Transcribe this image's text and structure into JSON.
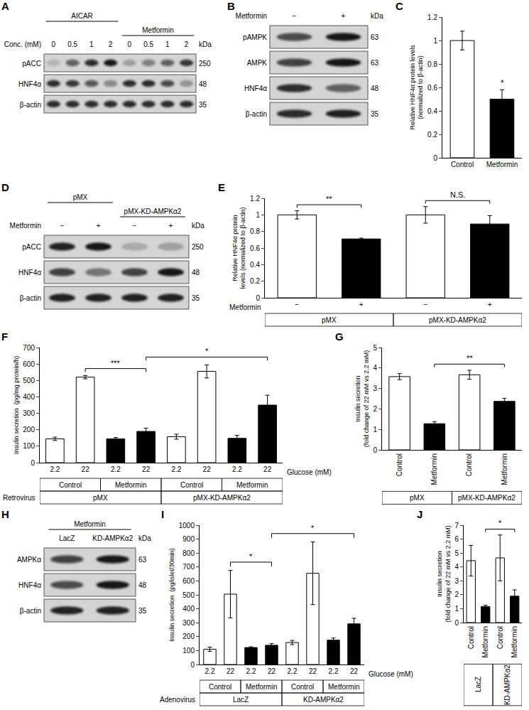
{
  "chart_data": [
    {
      "panel": "A",
      "type": "blot",
      "unit": "kDa",
      "headers": [
        {
          "label": "AICAR",
          "from": 0,
          "to": 3
        },
        {
          "label": "Metformin",
          "from": 4,
          "to": 7
        }
      ],
      "lane_rows": [
        {
          "title": "Conc. (mM)",
          "labels": [
            "0",
            "0.5",
            "1",
            "2",
            "0",
            "0.5",
            "1",
            "2"
          ]
        }
      ],
      "rows": [
        {
          "name": "pACC",
          "mw": "250",
          "intensity": [
            0.15,
            0.6,
            0.85,
            0.95,
            0.25,
            0.45,
            0.6,
            0.8
          ]
        },
        {
          "name": "HNF4α",
          "mw": "48",
          "intensity": [
            0.85,
            0.8,
            0.65,
            0.4,
            0.85,
            0.85,
            0.7,
            0.3
          ]
        },
        {
          "name": "β-actin",
          "mw": "35",
          "intensity": [
            0.85,
            0.85,
            0.85,
            0.85,
            0.85,
            0.85,
            0.85,
            0.85
          ]
        }
      ]
    },
    {
      "panel": "B",
      "type": "blot",
      "unit": "kDa",
      "lane_rows": [
        {
          "title": "Metformin",
          "labels": [
            "−",
            "+"
          ]
        }
      ],
      "rows": [
        {
          "name": "pAMPK",
          "mw": "63",
          "intensity": [
            0.7,
            0.95
          ]
        },
        {
          "name": "AMPK",
          "mw": "63",
          "intensity": [
            0.75,
            0.95
          ]
        },
        {
          "name": "HNF4α",
          "mw": "48",
          "intensity": [
            0.85,
            0.6
          ]
        },
        {
          "name": "β-actin",
          "mw": "35",
          "intensity": [
            0.85,
            0.9
          ]
        }
      ]
    },
    {
      "panel": "C",
      "type": "bar",
      "y_label": [
        "Relative HNF4α protein levels",
        "(normalized to β-actin)"
      ],
      "categories": [
        "Control",
        "Metformin"
      ],
      "values": [
        1.0,
        0.5
      ],
      "errors": [
        0.08,
        0.08
      ],
      "colors": [
        "#ffffff",
        "#000000"
      ],
      "ylim": [
        0,
        1.2
      ],
      "yticks": [
        0,
        0.2,
        0.4,
        0.6,
        0.8,
        1,
        1.2
      ],
      "annotations": [
        {
          "at": 1,
          "text": "*"
        }
      ]
    },
    {
      "panel": "D",
      "type": "blot",
      "unit": "kDa",
      "headers": [
        {
          "label": "pMX",
          "from": 0,
          "to": 1
        },
        {
          "label": "pMX-KD-AMPKα2",
          "from": 2,
          "to": 3
        }
      ],
      "lane_rows": [
        {
          "title": "Metformin",
          "labels": [
            "−",
            "+",
            "−",
            "+"
          ]
        }
      ],
      "rows": [
        {
          "name": "pACC",
          "mw": "250",
          "intensity": [
            0.9,
            0.95,
            0.2,
            0.25
          ]
        },
        {
          "name": "HNF4α",
          "mw": "48",
          "intensity": [
            0.75,
            0.5,
            0.75,
            0.95
          ]
        },
        {
          "name": "β-actin",
          "mw": "35",
          "intensity": [
            0.9,
            0.9,
            0.9,
            0.9
          ]
        }
      ]
    },
    {
      "panel": "E",
      "type": "bar",
      "y_label": [
        "Relative HNF4α protein",
        "levels (normalized to β-actin)"
      ],
      "categories": [
        "−",
        "+",
        "−",
        "+"
      ],
      "category_title": "Metformin",
      "values": [
        1.0,
        0.71,
        1.0,
        0.89
      ],
      "errors": [
        0.05,
        0.01,
        0.1,
        0.1
      ],
      "colors": [
        "#ffffff",
        "#000000",
        "#ffffff",
        "#000000"
      ],
      "ylim": [
        0,
        1.2
      ],
      "yticks": [
        0,
        0.2,
        0.4,
        0.6,
        0.8,
        1,
        1.2
      ],
      "group_rows": [
        {
          "spans": [
            {
              "label": "pMX",
              "from": 0,
              "to": 1
            },
            {
              "label": "pMX-KD-AMPKα2",
              "from": 2,
              "to": 3
            }
          ]
        }
      ],
      "brackets": [
        {
          "from": 0,
          "to": 1,
          "label": "**"
        },
        {
          "from": 2,
          "to": 3,
          "label": "N.S."
        }
      ]
    },
    {
      "panel": "F",
      "type": "bar",
      "y_label": [
        "Insulin secretion  (pg/mg protein/h)"
      ],
      "categories": [
        "2.2",
        "22",
        "2.2",
        "22",
        "2.2",
        "22",
        "2.2",
        "22"
      ],
      "category_title": "Glucose (mM)",
      "values": [
        145,
        520,
        145,
        190,
        158,
        555,
        148,
        350
      ],
      "errors": [
        10,
        10,
        8,
        20,
        15,
        40,
        18,
        60
      ],
      "colors": [
        "#ffffff",
        "#ffffff",
        "#000000",
        "#000000",
        "#ffffff",
        "#ffffff",
        "#000000",
        "#000000"
      ],
      "ylim": [
        0,
        700
      ],
      "yticks": [
        0,
        100,
        200,
        300,
        400,
        500,
        600,
        700
      ],
      "group_rows": [
        {
          "spans": [
            {
              "label": "Control",
              "from": 0,
              "to": 1
            },
            {
              "label": "Metformin",
              "from": 2,
              "to": 3
            },
            {
              "label": "Control",
              "from": 4,
              "to": 5
            },
            {
              "label": "Metformin",
              "from": 6,
              "to": 7
            }
          ]
        },
        {
          "title": "Retrovirus",
          "spans": [
            {
              "label": "pMX",
              "from": 0,
              "to": 3
            },
            {
              "label": "pMX-KD-AMPKα2",
              "from": 4,
              "to": 7
            }
          ]
        }
      ],
      "brackets": [
        {
          "from": 1,
          "to": 3,
          "label": "***"
        },
        {
          "from": 3,
          "to": 7,
          "label": "*"
        }
      ]
    },
    {
      "panel": "G",
      "type": "bar",
      "y_label": [
        "Insulin secretion",
        "(fold change of 22 mM vs 2.2 mM)"
      ],
      "categories": [
        "Control",
        "Metformin",
        "Control",
        "Metformin"
      ],
      "values": [
        3.58,
        1.28,
        3.67,
        2.37
      ],
      "errors": [
        0.15,
        0.1,
        0.22,
        0.15
      ],
      "colors": [
        "#ffffff",
        "#000000",
        "#ffffff",
        "#000000"
      ],
      "ylim": [
        0,
        5
      ],
      "yticks": [
        0,
        1,
        2,
        3,
        4,
        5
      ],
      "group_rows": [
        {
          "spans": [
            {
              "label": "pMX",
              "from": 0,
              "to": 1
            },
            {
              "label": "pMX-KD-AMPKα2",
              "from": 2,
              "to": 3
            }
          ]
        }
      ],
      "brackets": [
        {
          "from": 1,
          "to": 3,
          "label": "**"
        }
      ]
    },
    {
      "panel": "H",
      "type": "blot",
      "unit": "kDa",
      "headers": [
        {
          "label": "Metformin",
          "from": 0,
          "to": 1
        }
      ],
      "lane_rows": [
        {
          "labels": [
            "LacZ",
            "KD-AMPKα2"
          ]
        }
      ],
      "rows": [
        {
          "name": "AMPKα",
          "mw": "63",
          "intensity": [
            0.75,
            0.95
          ]
        },
        {
          "name": "HNF4α",
          "mw": "48",
          "intensity": [
            0.7,
            0.95
          ]
        },
        {
          "name": "β-actin",
          "mw": "35",
          "intensity": [
            0.9,
            0.9
          ]
        }
      ]
    },
    {
      "panel": "I",
      "type": "bar",
      "y_label": [
        "Insulin secretion  (pg/islet/30min)"
      ],
      "categories": [
        "2.2",
        "22",
        "2.2",
        "22",
        "2.2",
        "22",
        "2.2",
        "22"
      ],
      "category_title": "Glucose (mM)",
      "values": [
        110,
        505,
        122,
        138,
        158,
        655,
        175,
        292
      ],
      "errors": [
        15,
        170,
        5,
        12,
        15,
        225,
        15,
        40
      ],
      "colors": [
        "#ffffff",
        "#ffffff",
        "#000000",
        "#000000",
        "#ffffff",
        "#ffffff",
        "#000000",
        "#000000"
      ],
      "ylim": [
        0,
        1000
      ],
      "yticks": [
        0,
        100,
        200,
        300,
        400,
        500,
        600,
        700,
        800,
        900,
        1000
      ],
      "group_rows": [
        {
          "spans": [
            {
              "label": "Control",
              "from": 0,
              "to": 1
            },
            {
              "label": "Metformin",
              "from": 2,
              "to": 3
            },
            {
              "label": "Control",
              "from": 4,
              "to": 5
            },
            {
              "label": "Metformin",
              "from": 6,
              "to": 7
            }
          ]
        },
        {
          "title": "Adenovirus",
          "spans": [
            {
              "label": "LacZ",
              "from": 0,
              "to": 3
            },
            {
              "label": "KD-AMPKα2",
              "from": 4,
              "to": 7
            }
          ]
        }
      ],
      "brackets": [
        {
          "from": 1,
          "to": 3,
          "label": "*"
        },
        {
          "from": 3,
          "to": 7,
          "label": "*"
        }
      ]
    },
    {
      "panel": "J",
      "type": "bar",
      "y_label": [
        "Insulin secretion",
        "(fold change of 22 mM vs 2.2 mM)"
      ],
      "categories": [
        "Control",
        "Metformin",
        "Control",
        "Metformin"
      ],
      "values": [
        4.45,
        1.15,
        4.65,
        1.9
      ],
      "errors": [
        1.1,
        0.1,
        1.65,
        0.45
      ],
      "colors": [
        "#ffffff",
        "#000000",
        "#ffffff",
        "#000000"
      ],
      "ylim": [
        0,
        7
      ],
      "yticks": [
        0,
        1,
        2,
        3,
        4,
        5,
        6,
        7
      ],
      "group_rows": [
        {
          "spans": [
            {
              "label": "LacZ",
              "from": 0,
              "to": 1
            },
            {
              "label": "KD-AMPKα2",
              "from": 2,
              "to": 3
            }
          ]
        }
      ],
      "brackets": [
        {
          "from": 1,
          "to": 3,
          "label": "*"
        }
      ]
    }
  ]
}
